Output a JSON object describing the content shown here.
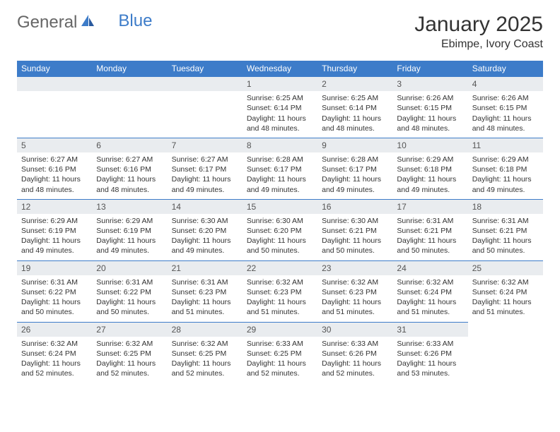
{
  "brand": {
    "general": "General",
    "blue": "Blue"
  },
  "title": "January 2025",
  "location": "Ebimpe, Ivory Coast",
  "weekdays": [
    "Sunday",
    "Monday",
    "Tuesday",
    "Wednesday",
    "Thursday",
    "Friday",
    "Saturday"
  ],
  "colors": {
    "header_bar": "#3d7cc9",
    "daynum_bg": "#e9ecef",
    "text": "#333333",
    "border": "#3d7cc9",
    "logo_gray": "#666666",
    "logo_blue": "#3d7cc9"
  },
  "calendar": {
    "first_weekday_index": 3,
    "days": [
      {
        "n": 1,
        "sunrise": "6:25 AM",
        "sunset": "6:14 PM",
        "daylight": "11 hours and 48 minutes."
      },
      {
        "n": 2,
        "sunrise": "6:25 AM",
        "sunset": "6:14 PM",
        "daylight": "11 hours and 48 minutes."
      },
      {
        "n": 3,
        "sunrise": "6:26 AM",
        "sunset": "6:15 PM",
        "daylight": "11 hours and 48 minutes."
      },
      {
        "n": 4,
        "sunrise": "6:26 AM",
        "sunset": "6:15 PM",
        "daylight": "11 hours and 48 minutes."
      },
      {
        "n": 5,
        "sunrise": "6:27 AM",
        "sunset": "6:16 PM",
        "daylight": "11 hours and 48 minutes."
      },
      {
        "n": 6,
        "sunrise": "6:27 AM",
        "sunset": "6:16 PM",
        "daylight": "11 hours and 48 minutes."
      },
      {
        "n": 7,
        "sunrise": "6:27 AM",
        "sunset": "6:17 PM",
        "daylight": "11 hours and 49 minutes."
      },
      {
        "n": 8,
        "sunrise": "6:28 AM",
        "sunset": "6:17 PM",
        "daylight": "11 hours and 49 minutes."
      },
      {
        "n": 9,
        "sunrise": "6:28 AM",
        "sunset": "6:17 PM",
        "daylight": "11 hours and 49 minutes."
      },
      {
        "n": 10,
        "sunrise": "6:29 AM",
        "sunset": "6:18 PM",
        "daylight": "11 hours and 49 minutes."
      },
      {
        "n": 11,
        "sunrise": "6:29 AM",
        "sunset": "6:18 PM",
        "daylight": "11 hours and 49 minutes."
      },
      {
        "n": 12,
        "sunrise": "6:29 AM",
        "sunset": "6:19 PM",
        "daylight": "11 hours and 49 minutes."
      },
      {
        "n": 13,
        "sunrise": "6:29 AM",
        "sunset": "6:19 PM",
        "daylight": "11 hours and 49 minutes."
      },
      {
        "n": 14,
        "sunrise": "6:30 AM",
        "sunset": "6:20 PM",
        "daylight": "11 hours and 49 minutes."
      },
      {
        "n": 15,
        "sunrise": "6:30 AM",
        "sunset": "6:20 PM",
        "daylight": "11 hours and 50 minutes."
      },
      {
        "n": 16,
        "sunrise": "6:30 AM",
        "sunset": "6:21 PM",
        "daylight": "11 hours and 50 minutes."
      },
      {
        "n": 17,
        "sunrise": "6:31 AM",
        "sunset": "6:21 PM",
        "daylight": "11 hours and 50 minutes."
      },
      {
        "n": 18,
        "sunrise": "6:31 AM",
        "sunset": "6:21 PM",
        "daylight": "11 hours and 50 minutes."
      },
      {
        "n": 19,
        "sunrise": "6:31 AM",
        "sunset": "6:22 PM",
        "daylight": "11 hours and 50 minutes."
      },
      {
        "n": 20,
        "sunrise": "6:31 AM",
        "sunset": "6:22 PM",
        "daylight": "11 hours and 50 minutes."
      },
      {
        "n": 21,
        "sunrise": "6:31 AM",
        "sunset": "6:23 PM",
        "daylight": "11 hours and 51 minutes."
      },
      {
        "n": 22,
        "sunrise": "6:32 AM",
        "sunset": "6:23 PM",
        "daylight": "11 hours and 51 minutes."
      },
      {
        "n": 23,
        "sunrise": "6:32 AM",
        "sunset": "6:23 PM",
        "daylight": "11 hours and 51 minutes."
      },
      {
        "n": 24,
        "sunrise": "6:32 AM",
        "sunset": "6:24 PM",
        "daylight": "11 hours and 51 minutes."
      },
      {
        "n": 25,
        "sunrise": "6:32 AM",
        "sunset": "6:24 PM",
        "daylight": "11 hours and 51 minutes."
      },
      {
        "n": 26,
        "sunrise": "6:32 AM",
        "sunset": "6:24 PM",
        "daylight": "11 hours and 52 minutes."
      },
      {
        "n": 27,
        "sunrise": "6:32 AM",
        "sunset": "6:25 PM",
        "daylight": "11 hours and 52 minutes."
      },
      {
        "n": 28,
        "sunrise": "6:32 AM",
        "sunset": "6:25 PM",
        "daylight": "11 hours and 52 minutes."
      },
      {
        "n": 29,
        "sunrise": "6:33 AM",
        "sunset": "6:25 PM",
        "daylight": "11 hours and 52 minutes."
      },
      {
        "n": 30,
        "sunrise": "6:33 AM",
        "sunset": "6:26 PM",
        "daylight": "11 hours and 52 minutes."
      },
      {
        "n": 31,
        "sunrise": "6:33 AM",
        "sunset": "6:26 PM",
        "daylight": "11 hours and 53 minutes."
      }
    ]
  },
  "labels": {
    "sunrise": "Sunrise:",
    "sunset": "Sunset:",
    "daylight": "Daylight:"
  }
}
